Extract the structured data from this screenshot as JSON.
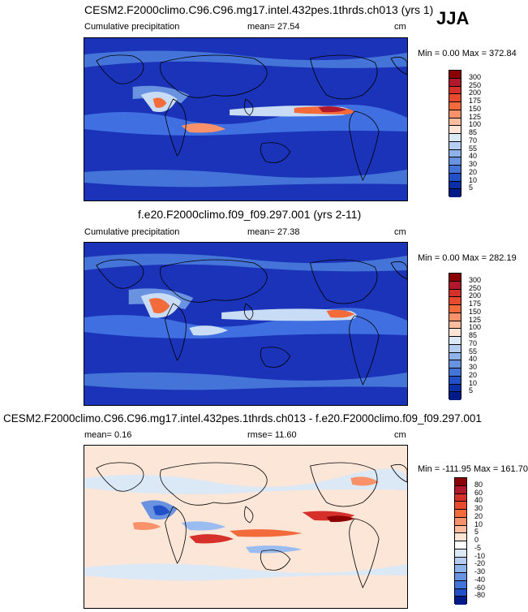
{
  "season": "JJA",
  "panels": [
    {
      "title": "CESM2.F2000climo.C96.C96.mg17.intel.432pes.1thrds.ch013 (yrs 1)",
      "left_label": "Cumulative precipitation",
      "stat_label": "mean=  27.54",
      "stat2_label": "",
      "units": "cm",
      "minmax": "Min =   0.00 Max = 372.84",
      "colorbar_labels": [
        "300",
        "250",
        "200",
        "175",
        "150",
        "125",
        "100",
        "85",
        "70",
        "55",
        "40",
        "30",
        "20",
        "10",
        "5"
      ],
      "colorbar_colors": [
        "#8b0000",
        "#b2182b",
        "#d6302b",
        "#e84a2e",
        "#f36b3b",
        "#f9926a",
        "#fbbd9d",
        "#fde4d4",
        "#dbe8f6",
        "#b5cdf0",
        "#8fb2ea",
        "#6993e0",
        "#4574d8",
        "#2250c9",
        "#0b2fa8",
        "#001a8a"
      ]
    },
    {
      "title": "f.e20.F2000climo.f09_f09.297.001 (yrs 2-11)",
      "left_label": "Cumulative precipitation",
      "stat_label": "mean=  27.38",
      "stat2_label": "",
      "units": "cm",
      "minmax": "Min =   0.00 Max = 282.19",
      "colorbar_labels": [
        "300",
        "250",
        "200",
        "175",
        "150",
        "125",
        "100",
        "85",
        "70",
        "55",
        "40",
        "30",
        "20",
        "10",
        "5"
      ],
      "colorbar_colors": [
        "#8b0000",
        "#b2182b",
        "#d6302b",
        "#e84a2e",
        "#f36b3b",
        "#f9926a",
        "#fbbd9d",
        "#fde4d4",
        "#dbe8f6",
        "#b5cdf0",
        "#8fb2ea",
        "#6993e0",
        "#4574d8",
        "#2250c9",
        "#0b2fa8",
        "#001a8a"
      ]
    },
    {
      "title": "CESM2.F2000climo.C96.C96.mg17.intel.432pes.1thrds.ch013 - f.e20.F2000climo.f09_f09.297.001",
      "left_label": "",
      "stat_label": "mean=   0.16",
      "stat2_label": "rmse=  11.60",
      "units": "cm",
      "minmax": "Min = -111.95 Max = 161.70",
      "colorbar_labels": [
        "80",
        "60",
        "40",
        "30",
        "20",
        "10",
        "5",
        "0",
        "-5",
        "-10",
        "-20",
        "-30",
        "-40",
        "-60",
        "-80"
      ],
      "colorbar_colors": [
        "#8b0000",
        "#b2182b",
        "#d6302b",
        "#e84a2e",
        "#f36b3b",
        "#f9926a",
        "#fbbd9d",
        "#fde4d4",
        "#ffffff",
        "#dbe8f6",
        "#b5cdf0",
        "#8fb2ea",
        "#6993e0",
        "#4574d8",
        "#2250c9",
        "#001a8a"
      ]
    }
  ],
  "colors": {
    "field_ocean_dark": "#1a33b8",
    "field_mid": "#3f6fe0",
    "field_light": "#c9dcf6",
    "field_warm": "#f0663a",
    "diff_base": "#fbe6d8",
    "diff_blue": "#9bbcf0",
    "diff_red": "#d6302b",
    "coast": "#000000"
  }
}
